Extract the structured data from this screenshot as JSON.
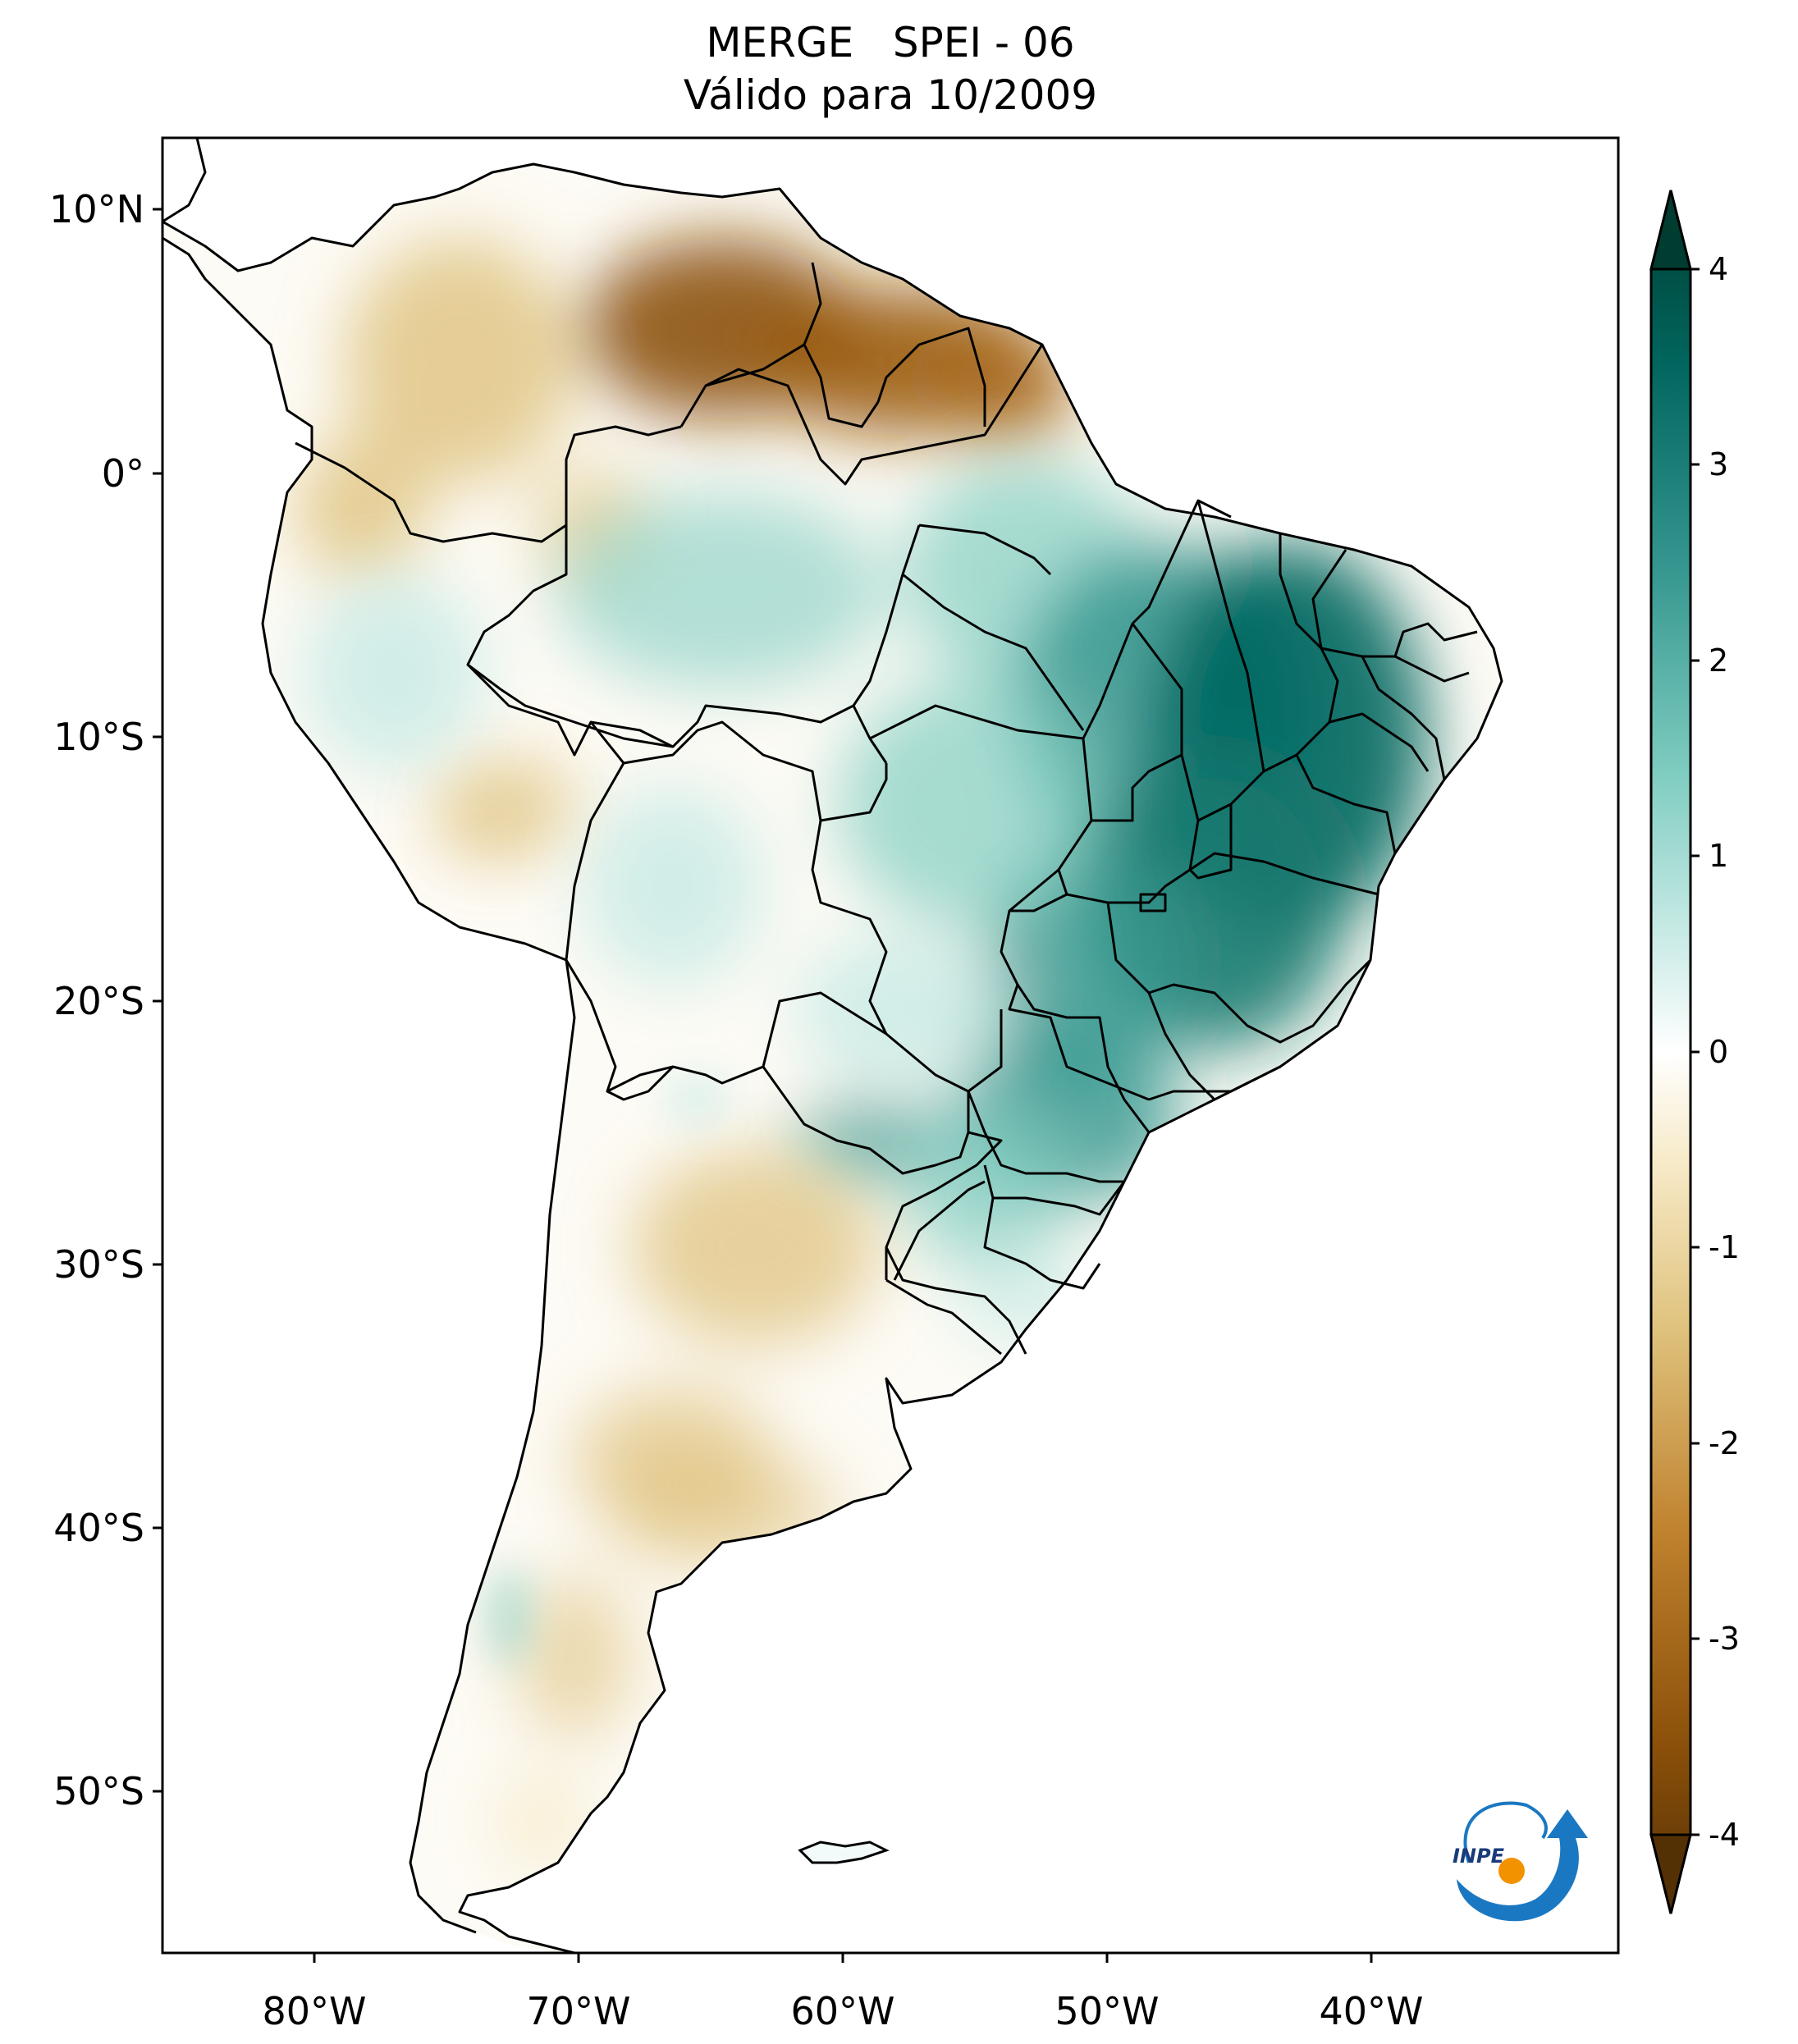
{
  "title": {
    "line1": "MERGE   SPEI - 06",
    "line2": "Válido para 10/2009"
  },
  "map": {
    "region": "South America",
    "lon_range": [
      -85,
      -30
    ],
    "lat_range": [
      -56,
      13
    ],
    "lat_ticks": [
      "10°N",
      "0°",
      "10°S",
      "20°S",
      "30°S",
      "40°S",
      "50°S"
    ],
    "lon_ticks": [
      "80°W",
      "70°W",
      "60°W",
      "50°W",
      "40°W"
    ]
  },
  "colorbar": {
    "ticks": [
      "4",
      "3",
      "2",
      "1",
      "0",
      "-1",
      "-2",
      "-3",
      "-4"
    ],
    "range": [
      -4,
      4
    ],
    "extend": "both",
    "colormap": "BrBG",
    "colors": {
      "dry_extreme": "#543005",
      "dry_strong": "#8c510a",
      "dry_moderate": "#bf812d",
      "dry_mild": "#dfc27d",
      "dry_slight": "#f6e8c3",
      "neutral": "#ffffff",
      "wet_slight": "#c7eae5",
      "wet_mild": "#80cdc1",
      "wet_moderate": "#35978f",
      "wet_strong": "#01665e",
      "wet_extreme": "#003c30"
    }
  },
  "logo": {
    "text": "INPE",
    "icon": "inpe-logo-icon"
  }
}
